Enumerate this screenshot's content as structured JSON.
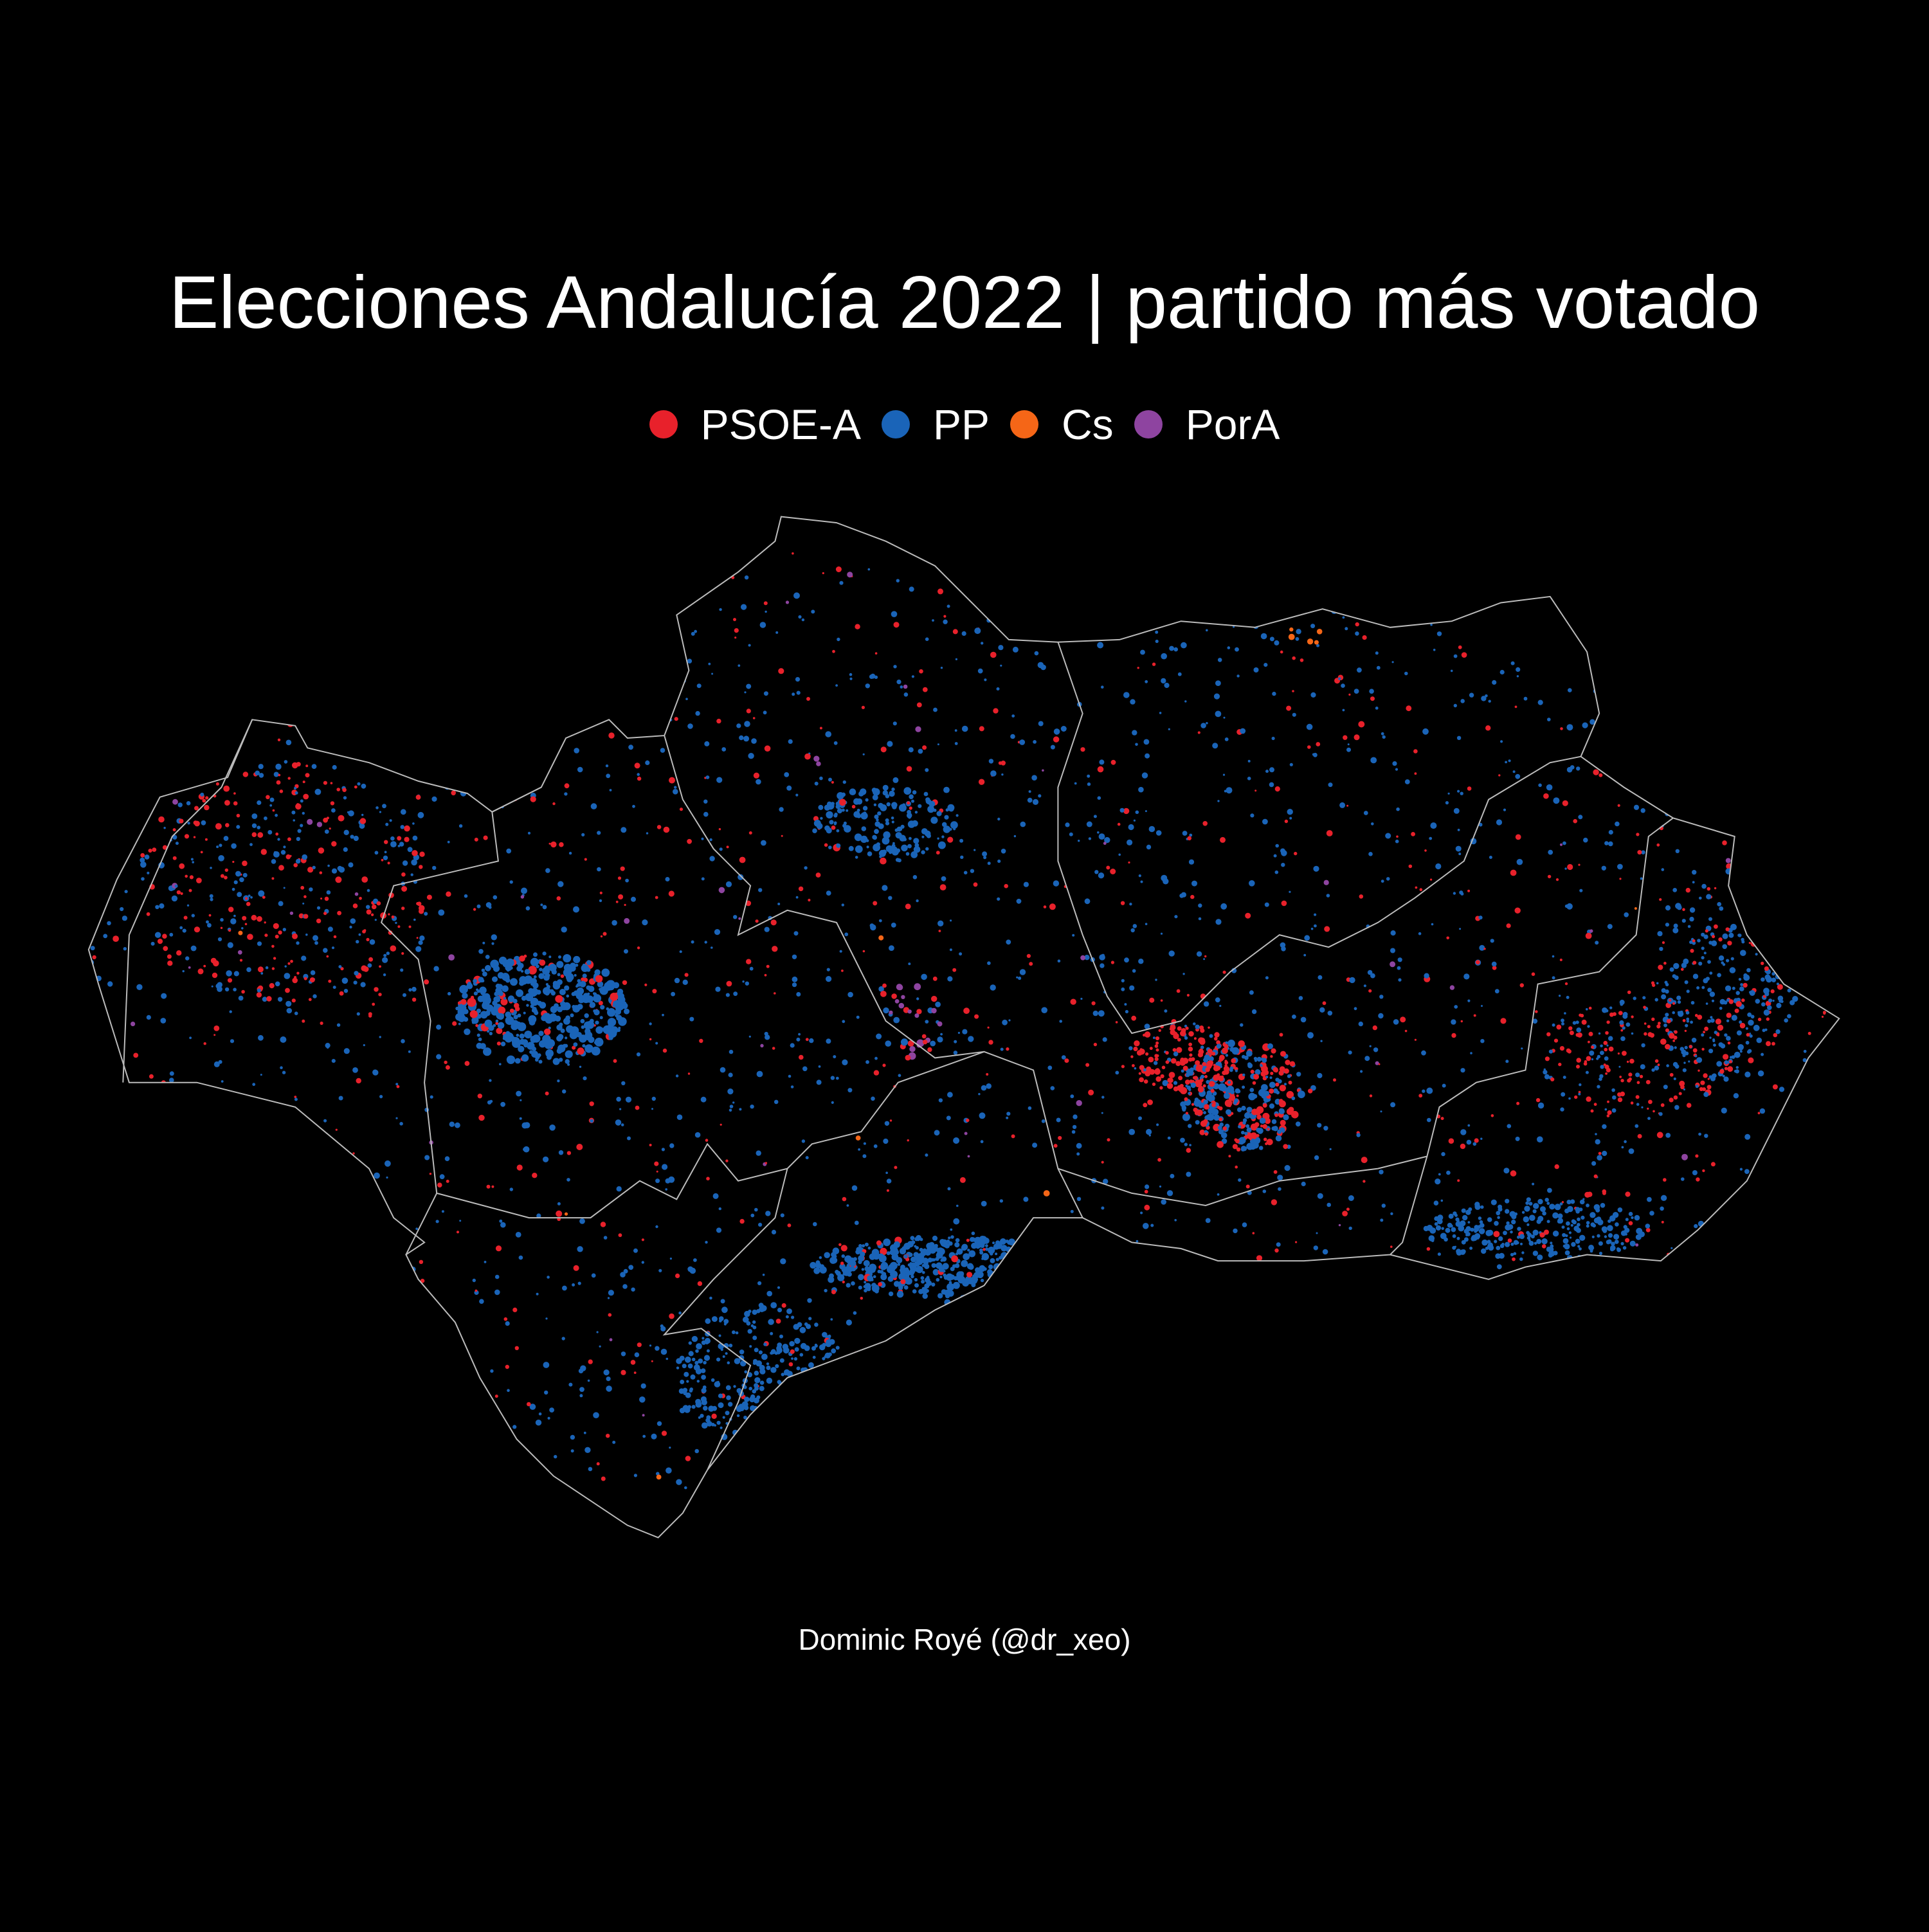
{
  "title": "Elecciones Andalucía 2022 | partido más votado",
  "legend": [
    {
      "label": "PSOE-A",
      "color": "#e8212b"
    },
    {
      "label": "PP",
      "color": "#1a64b8"
    },
    {
      "label": "Cs",
      "color": "#f56617"
    },
    {
      "label": "PorA",
      "color": "#8e44a0"
    }
  ],
  "caption": "Dominic Royé (@dr_xeo)",
  "map": {
    "region": "Andalucía",
    "background": "#000000",
    "border_color": "#bbbbbb"
  }
}
